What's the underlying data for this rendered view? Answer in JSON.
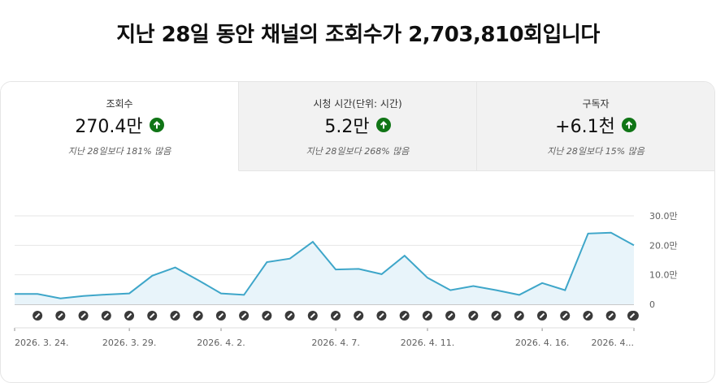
{
  "headline": "지난 28일 동안 채널의 조회수가 2,703,810회입니다",
  "metrics": [
    {
      "label": "조회수",
      "value": "270.4만",
      "compare": "지난 28일보다 181% 많음",
      "trend_icon": "arrow-up-circle-icon"
    },
    {
      "label": "시청 시간(단위: 시간)",
      "value": "5.2만",
      "compare": "지난 28일보다 268% 많음",
      "trend_icon": "arrow-up-circle-icon"
    },
    {
      "label": "구독자",
      "value": "+6.1천",
      "compare": "지난 28일보다 15% 많음",
      "trend_icon": "arrow-up-circle-icon"
    }
  ],
  "colors": {
    "line": "#3ea6c9",
    "area": "#e8f4fa",
    "trend_up": "#107516"
  },
  "chart_data": {
    "type": "area",
    "y_ticks": [
      "30.0만",
      "20.0만",
      "10.0만",
      "0"
    ],
    "ylim": [
      0,
      300000
    ],
    "x_labels": [
      "2026. 3. 24.",
      "2026. 3. 29.",
      "2026. 4. 2.",
      "2026. 4. 7.",
      "2026. 4. 11.",
      "2026. 4. 16.",
      "2026. 4..."
    ],
    "x_label_day_index": [
      0,
      5,
      9,
      14,
      18,
      23,
      27
    ],
    "values": [
      35000,
      35000,
      20000,
      28000,
      33000,
      37000,
      97000,
      125000,
      82000,
      37000,
      32000,
      143000,
      155000,
      212000,
      118000,
      120000,
      102000,
      165000,
      90000,
      48000,
      62000,
      48000,
      32000,
      72000,
      48000,
      240000,
      243000,
      200000
    ],
    "upload_marker_icon": "video-upload-marker-icon",
    "grid": true
  }
}
